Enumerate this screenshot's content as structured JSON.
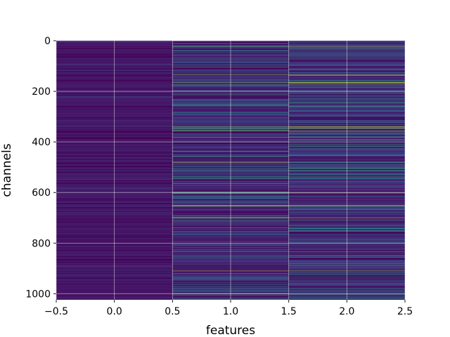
{
  "chart_data": {
    "type": "heatmap",
    "title": "",
    "xlabel": "features",
    "ylabel": "channels",
    "xlim": [
      -0.5,
      2.5
    ],
    "ylim": [
      1024,
      0
    ],
    "y_inverted": true,
    "grid": true,
    "colormap": "viridis",
    "n_rows": 1024,
    "columns": [
      0,
      1,
      2
    ],
    "x_ticks": [
      -0.5,
      0.0,
      0.5,
      1.0,
      1.5,
      2.0,
      2.5
    ],
    "x_tick_labels": [
      "−0.5",
      "0.0",
      "0.5",
      "1.0",
      "1.5",
      "2.0",
      "2.5"
    ],
    "y_ticks": [
      0,
      200,
      400,
      600,
      800,
      1000
    ],
    "y_tick_labels": [
      "0",
      "200",
      "400",
      "600",
      "800",
      "1000"
    ],
    "column_value_summary": [
      {
        "column": 0,
        "typical": 0.08,
        "max": 0.3
      },
      {
        "column": 1,
        "typical": 0.15,
        "max": 1.0
      },
      {
        "column": 2,
        "typical": 0.15,
        "max": 1.0
      }
    ],
    "bright_rows": [
      20,
      135,
      165,
      175,
      340,
      345,
      355,
      480,
      600,
      650,
      655,
      700,
      910,
      1000
    ]
  }
}
